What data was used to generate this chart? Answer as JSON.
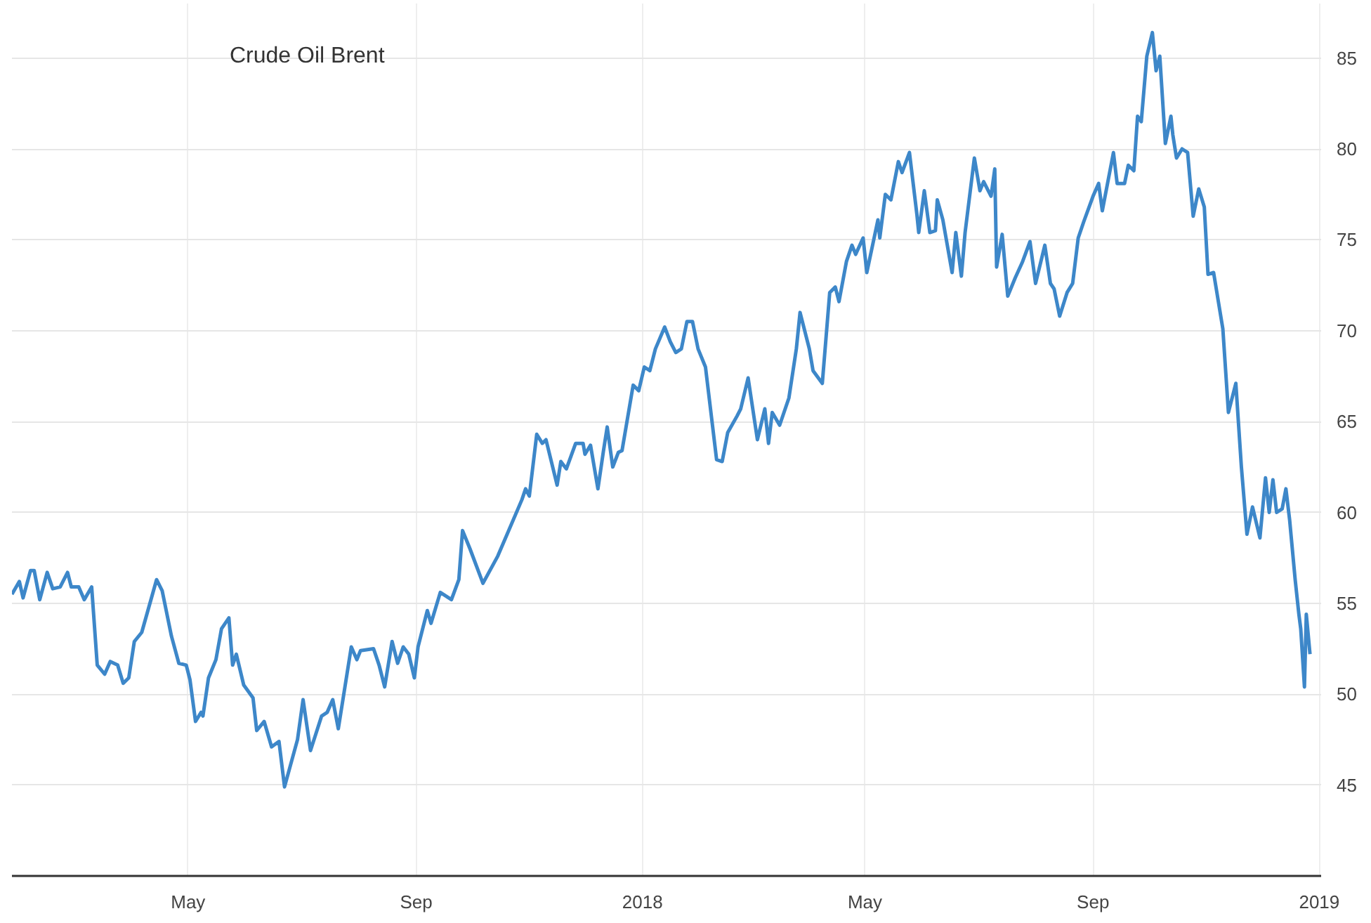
{
  "chart_data": {
    "type": "line",
    "title": "Crude Oil Brent",
    "x": [
      "2017-01-26",
      "2017-01-30",
      "2017-02-01",
      "2017-02-05",
      "2017-02-07",
      "2017-02-10",
      "2017-02-14",
      "2017-02-17",
      "2017-02-21",
      "2017-02-25",
      "2017-02-27",
      "2017-03-03",
      "2017-03-06",
      "2017-03-10",
      "2017-03-13",
      "2017-03-17",
      "2017-03-20",
      "2017-03-24",
      "2017-03-27",
      "2017-03-30",
      "2017-04-02",
      "2017-04-06",
      "2017-04-14",
      "2017-04-17",
      "2017-04-22",
      "2017-04-26",
      "2017-04-30",
      "2017-05-02",
      "2017-05-05",
      "2017-05-08",
      "2017-05-09",
      "2017-05-12",
      "2017-05-16",
      "2017-05-19",
      "2017-05-23",
      "2017-05-25",
      "2017-05-27",
      "2017-05-31",
      "2017-06-05",
      "2017-06-07",
      "2017-06-11",
      "2017-06-15",
      "2017-06-19",
      "2017-06-22",
      "2017-06-29",
      "2017-07-02",
      "2017-07-06",
      "2017-07-12",
      "2017-07-15",
      "2017-07-18",
      "2017-07-21",
      "2017-07-28",
      "2017-07-31",
      "2017-08-02",
      "2017-08-09",
      "2017-08-12",
      "2017-08-15",
      "2017-08-19",
      "2017-08-22",
      "2017-08-25",
      "2017-08-28",
      "2017-08-31",
      "2017-09-02",
      "2017-09-07",
      "2017-09-09",
      "2017-09-14",
      "2017-09-20",
      "2017-09-24",
      "2017-09-26",
      "2017-09-30",
      "2017-10-07",
      "2017-10-15",
      "2017-10-28",
      "2017-10-30",
      "2017-11-01",
      "2017-11-05",
      "2017-11-08",
      "2017-11-10",
      "2017-11-16",
      "2017-11-18",
      "2017-11-21",
      "2017-11-26",
      "2017-11-30",
      "2017-12-01",
      "2017-12-04",
      "2017-12-08",
      "2017-12-11",
      "2017-12-13",
      "2017-12-16",
      "2017-12-19",
      "2017-12-21",
      "2017-12-27",
      "2017-12-30",
      "2018-01-02",
      "2018-01-05",
      "2018-01-08",
      "2018-01-13",
      "2018-01-16",
      "2018-01-19",
      "2018-01-22",
      "2018-01-25",
      "2018-01-28",
      "2018-01-31",
      "2018-02-04",
      "2018-02-10",
      "2018-02-13",
      "2018-02-16",
      "2018-02-21",
      "2018-02-23",
      "2018-02-27",
      "2018-03-04",
      "2018-03-08",
      "2018-03-10",
      "2018-03-12",
      "2018-03-16",
      "2018-03-21",
      "2018-03-25",
      "2018-03-27",
      "2018-04-01",
      "2018-04-03",
      "2018-04-08",
      "2018-04-12",
      "2018-04-15",
      "2018-04-17",
      "2018-04-21",
      "2018-04-24",
      "2018-04-26",
      "2018-04-30",
      "2018-05-02",
      "2018-05-08",
      "2018-05-09",
      "2018-05-12",
      "2018-05-15",
      "2018-05-19",
      "2018-05-21",
      "2018-05-25",
      "2018-05-29",
      "2018-05-30",
      "2018-06-02",
      "2018-06-05",
      "2018-06-08",
      "2018-06-09",
      "2018-06-12",
      "2018-06-17",
      "2018-06-19",
      "2018-06-22",
      "2018-06-24",
      "2018-06-29",
      "2018-07-02",
      "2018-07-04",
      "2018-07-08",
      "2018-07-10",
      "2018-07-11",
      "2018-07-14",
      "2018-07-17",
      "2018-07-21",
      "2018-07-25",
      "2018-07-29",
      "2018-08-01",
      "2018-08-06",
      "2018-08-09",
      "2018-08-11",
      "2018-08-14",
      "2018-08-18",
      "2018-08-21",
      "2018-08-24",
      "2018-08-27",
      "2018-09-01",
      "2018-09-04",
      "2018-09-06",
      "2018-09-12",
      "2018-09-14",
      "2018-09-18",
      "2018-09-20",
      "2018-09-23",
      "2018-09-25",
      "2018-09-27",
      "2018-09-30",
      "2018-10-03",
      "2018-10-05",
      "2018-10-07",
      "2018-10-10",
      "2018-10-13",
      "2018-10-14",
      "2018-10-16",
      "2018-10-19",
      "2018-10-22",
      "2018-10-25",
      "2018-10-28",
      "2018-10-31",
      "2018-11-02",
      "2018-11-05",
      "2018-11-10",
      "2018-11-13",
      "2018-11-17",
      "2018-11-20",
      "2018-11-23",
      "2018-11-26",
      "2018-11-30",
      "2018-12-03",
      "2018-12-05",
      "2018-12-07",
      "2018-12-09",
      "2018-12-12",
      "2018-12-14",
      "2018-12-16",
      "2018-12-19",
      "2018-12-21",
      "2018-12-22",
      "2018-12-24",
      "2018-12-25",
      "2018-12-27"
    ],
    "series": [
      {
        "color": "#3d87c9",
        "values": [
          55.5,
          56.2,
          55.3,
          56.8,
          56.8,
          55.2,
          56.7,
          55.8,
          55.9,
          56.7,
          55.9,
          55.9,
          55.2,
          55.9,
          51.6,
          51.1,
          51.8,
          51.6,
          50.6,
          50.9,
          52.9,
          53.4,
          56.3,
          55.7,
          53.2,
          51.7,
          51.6,
          50.8,
          48.5,
          49.0,
          48.8,
          50.9,
          51.9,
          53.6,
          54.2,
          51.6,
          52.2,
          50.5,
          49.8,
          48.0,
          48.5,
          47.1,
          47.4,
          44.9,
          47.5,
          49.7,
          46.9,
          48.8,
          49.0,
          49.7,
          48.1,
          52.6,
          51.9,
          52.4,
          52.5,
          51.6,
          50.4,
          52.9,
          51.7,
          52.6,
          52.2,
          50.9,
          52.6,
          54.6,
          53.9,
          55.6,
          55.2,
          56.3,
          59.0,
          58.0,
          56.1,
          57.6,
          60.7,
          61.3,
          60.9,
          64.3,
          63.8,
          64.0,
          61.5,
          62.8,
          62.4,
          63.8,
          63.8,
          63.2,
          63.7,
          61.3,
          63.4,
          64.7,
          62.5,
          63.3,
          63.4,
          67.0,
          66.7,
          68.0,
          67.8,
          69.0,
          70.2,
          69.4,
          68.8,
          69.0,
          70.5,
          70.5,
          69.0,
          68.0,
          62.9,
          62.8,
          64.4,
          65.3,
          65.7,
          67.4,
          64.0,
          65.7,
          63.8,
          65.5,
          64.8,
          66.3,
          69.0,
          71.0,
          69.0,
          67.8,
          67.1,
          72.1,
          72.4,
          71.6,
          73.8,
          74.7,
          74.2,
          75.1,
          73.2,
          76.1,
          75.1,
          77.5,
          77.2,
          79.3,
          78.7,
          79.8,
          76.4,
          75.4,
          77.7,
          75.4,
          75.5,
          77.2,
          76.1,
          73.2,
          75.4,
          73.0,
          75.4,
          79.5,
          77.7,
          78.2,
          77.4,
          78.9,
          73.5,
          75.3,
          71.9,
          72.9,
          73.8,
          74.9,
          72.6,
          74.7,
          72.6,
          72.3,
          70.8,
          72.1,
          72.6,
          75.1,
          76.0,
          77.4,
          78.1,
          76.6,
          79.8,
          78.1,
          78.1,
          79.1,
          78.8,
          81.8,
          81.5,
          85.1,
          86.4,
          84.3,
          85.1,
          80.3,
          81.8,
          80.8,
          79.5,
          80.0,
          79.8,
          76.3,
          77.8,
          76.8,
          73.1,
          73.2,
          70.1,
          65.5,
          67.1,
          62.5,
          58.8,
          60.3,
          58.6,
          61.9,
          60.0,
          61.8,
          60.0,
          60.2,
          61.3,
          59.6,
          56.3,
          54.4,
          53.6,
          50.4,
          54.4,
          52.2
        ]
      }
    ],
    "xlim": [
      "2017-01-26",
      "2019-01-02"
    ],
    "xticks": [
      {
        "value": "2017-05-01",
        "label": "May"
      },
      {
        "value": "2017-09-01",
        "label": "Sep"
      },
      {
        "value": "2018-01-01",
        "label": "2018"
      },
      {
        "value": "2018-05-01",
        "label": "May"
      },
      {
        "value": "2018-09-01",
        "label": "Sep"
      },
      {
        "value": "2019-01-01",
        "label": "2019"
      }
    ],
    "ylim": [
      40,
      88
    ],
    "yticks": [
      45,
      50,
      55,
      60,
      65,
      70,
      75,
      80,
      85
    ],
    "grid": true
  }
}
